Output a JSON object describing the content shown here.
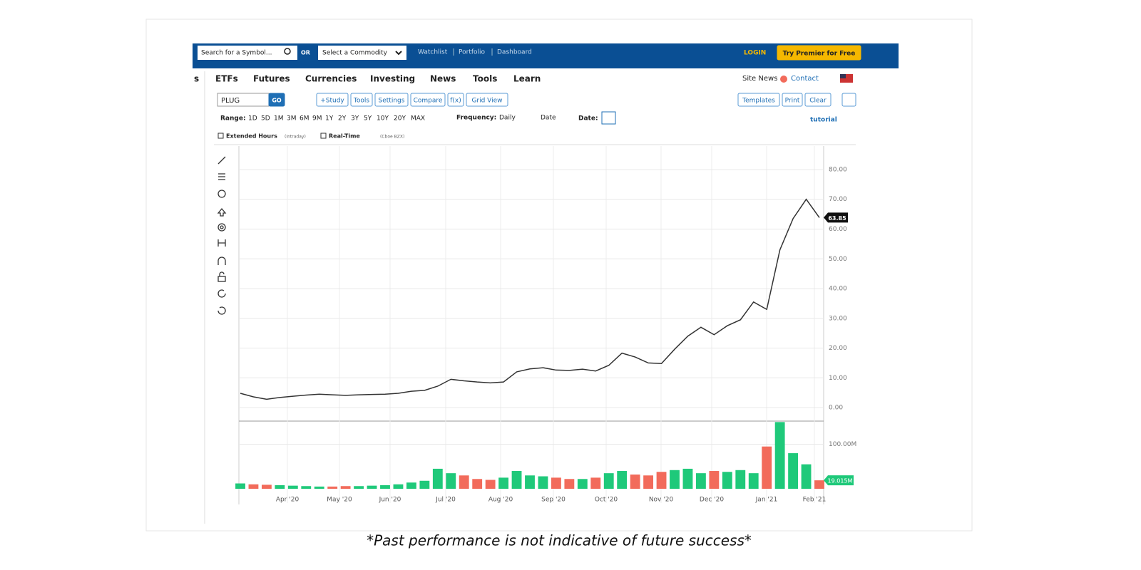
{
  "header": {
    "search_placeholder": "Search for a Symbol...",
    "or": "OR",
    "commodity": "Select a Commodity",
    "links": [
      "Watchlist",
      "Portfolio",
      "Dashboard"
    ],
    "login": "LOGIN",
    "premier": "Try Premier for Free"
  },
  "menu": {
    "items": [
      "s",
      "ETFs",
      "Futures",
      "Currencies",
      "Investing",
      "News",
      "Tools",
      "Learn"
    ],
    "site_news": "Site News",
    "contact": "Contact"
  },
  "toolbar": {
    "symbol": "PLUG",
    "go": "GO",
    "buttons": [
      "+Study",
      "Tools",
      "Settings",
      "Compare",
      "f(x)",
      "Grid View"
    ],
    "right_buttons": [
      "Templates",
      "Print",
      "Clear"
    ]
  },
  "range": {
    "label": "Range:",
    "options": [
      "1D",
      "5D",
      "1M",
      "3M",
      "6M",
      "9M",
      "1Y",
      "2Y",
      "3Y",
      "5Y",
      "10Y",
      "20Y",
      "MAX"
    ],
    "frequency_label": "Frequency:",
    "frequency": "Daily",
    "date_mode": "Date",
    "date_label": "Date:",
    "tutorial": "tutorial"
  },
  "options": [
    {
      "label": "Extended Hours",
      "note": "(Intraday)"
    },
    {
      "label": "Real-Time",
      "note": "(Cboe BZX)"
    }
  ],
  "chart_data": [
    {
      "type": "line",
      "color": "#333333",
      "values": [
        4.8,
        3.6,
        2.8,
        3.4,
        3.8,
        4.2,
        4.5,
        4.3,
        4.1,
        4.3,
        4.4,
        4.5,
        4.8,
        5.5,
        5.8,
        7.2,
        9.5,
        9.0,
        8.6,
        8.3,
        8.6,
        12.0,
        13.0,
        13.4,
        12.6,
        12.5,
        12.9,
        12.3,
        14.2,
        18.3,
        17.0,
        15.0,
        14.8,
        19.6,
        24.0,
        27.0,
        24.5,
        27.5,
        29.5,
        35.5,
        33.0,
        53.0,
        63.5,
        70.0,
        63.85
      ],
      "ylim": [
        -4.3,
        87.9
      ],
      "yticks": [
        {
          "value": 0,
          "label": "0.00"
        },
        {
          "value": 10,
          "label": "10.00"
        },
        {
          "value": 20,
          "label": "20.00"
        },
        {
          "value": 30,
          "label": "30.00"
        },
        {
          "value": 40,
          "label": "40.00"
        },
        {
          "value": 50,
          "label": "50.00"
        },
        {
          "value": 60,
          "label": "60.00"
        },
        {
          "value": 70,
          "label": "70.00"
        },
        {
          "value": 80,
          "label": "80.00"
        }
      ],
      "grid": true
    },
    {
      "type": "bar",
      "up_color": "#1fc97a",
      "down_color": "#f26b5b",
      "values": [
        12,
        10,
        9,
        8,
        7,
        6,
        5,
        5,
        6,
        6,
        7,
        8,
        10,
        14,
        18,
        45,
        35,
        30,
        22,
        20,
        25,
        40,
        30,
        28,
        25,
        22,
        22,
        25,
        35,
        40,
        32,
        30,
        38,
        42,
        45,
        35,
        40,
        38,
        42,
        35,
        95,
        150,
        80,
        55,
        19.015
      ],
      "last_label": "19.015M",
      "ylim": [
        0,
        181
      ],
      "yticks": [
        {
          "value": 100,
          "label": "100.00M"
        }
      ],
      "x_axis_labels": [
        "Apr '20",
        "May '20",
        "Jun '20",
        "Jul '20",
        "Aug '20",
        "Sep '20",
        "Oct '20",
        "Nov '20",
        "Dec '20",
        "Jan '21",
        "Feb '21"
      ],
      "grid": true
    }
  ],
  "disclaimer": "*Past performance is not indicative of future success*"
}
